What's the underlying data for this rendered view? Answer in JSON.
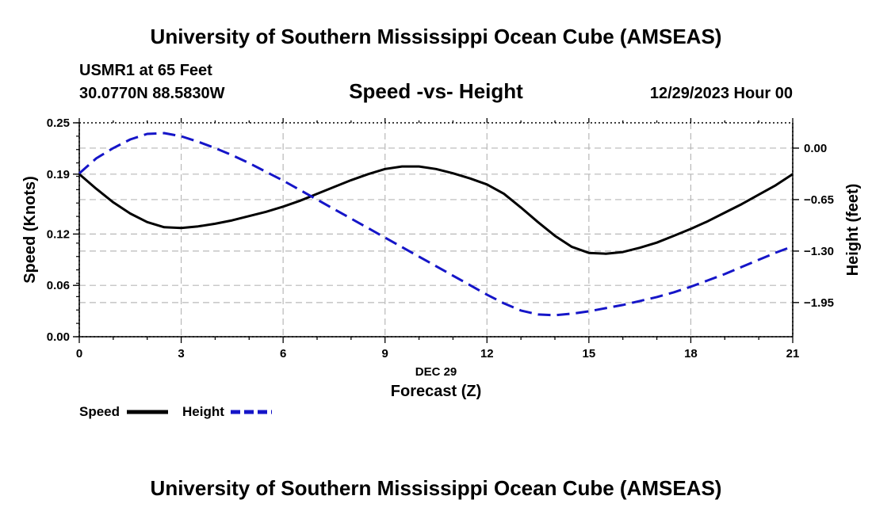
{
  "header": {
    "title": "University of Southern Mississippi Ocean Cube (AMSEAS)",
    "station": "USMR1 at 65 Feet",
    "coords": "30.0770N  88.5830W",
    "date_label": "12/29/2023 Hour 00",
    "footer_title": "University of Southern Mississippi Ocean Cube (AMSEAS)"
  },
  "chart_data": {
    "type": "line",
    "title": "Speed -vs- Height",
    "xlabel_day": "DEC 29",
    "xlabel": "Forecast (Z)",
    "ylabel": "Speed (Knots)",
    "y2label": "Height (feet)",
    "xlim": [
      0,
      21
    ],
    "ylim": [
      0.0,
      0.25
    ],
    "y2lim": [
      -2.3816,
      0.3196
    ],
    "x_ticks": [
      0,
      3,
      6,
      9,
      12,
      15,
      18,
      21
    ],
    "x_tick_labels": [
      "0",
      "3",
      "6",
      "9",
      "12",
      "15",
      "18",
      "21"
    ],
    "y_ticks": [
      0.0,
      0.06,
      0.12,
      0.19,
      0.25
    ],
    "y_tick_labels": [
      "0.00",
      "0.06",
      "0.12",
      "0.19",
      "0.25"
    ],
    "y2_ticks": [
      0.0,
      -0.65,
      -1.3,
      -1.95
    ],
    "y2_tick_labels": [
      "0.00",
      "-0.65",
      "-1.30",
      "-1.95"
    ],
    "grid": true,
    "legend_position": "bottom-left",
    "series": [
      {
        "name": "Speed",
        "axis": "left",
        "color": "#000000",
        "style": "solid",
        "x": [
          0,
          0.5,
          1,
          1.5,
          2,
          2.5,
          3,
          3.5,
          4,
          4.5,
          5,
          5.5,
          6,
          6.5,
          7,
          7.5,
          8,
          8.5,
          9,
          9.5,
          10,
          10.5,
          11,
          11.5,
          12,
          12.5,
          13,
          13.5,
          14,
          14.5,
          15,
          15.5,
          16,
          16.5,
          17,
          17.5,
          18,
          18.5,
          19,
          19.5,
          20,
          20.5,
          21
        ],
        "values": [
          0.19,
          0.173,
          0.157,
          0.144,
          0.134,
          0.128,
          0.127,
          0.129,
          0.132,
          0.136,
          0.141,
          0.146,
          0.152,
          0.159,
          0.167,
          0.175,
          0.183,
          0.19,
          0.196,
          0.199,
          0.199,
          0.196,
          0.191,
          0.185,
          0.178,
          0.167,
          0.151,
          0.134,
          0.118,
          0.105,
          0.098,
          0.097,
          0.099,
          0.104,
          0.11,
          0.118,
          0.126,
          0.135,
          0.145,
          0.155,
          0.166,
          0.177,
          0.19
        ]
      },
      {
        "name": "Height",
        "axis": "right",
        "color": "#1515c8",
        "style": "dashed",
        "x": [
          0,
          0.5,
          1,
          1.5,
          2,
          2.5,
          3,
          3.5,
          4,
          4.5,
          5,
          5.5,
          6,
          6.5,
          7,
          7.5,
          8,
          8.5,
          9,
          9.5,
          10,
          10.5,
          11,
          11.5,
          12,
          12.5,
          13,
          13.5,
          14,
          14.5,
          15,
          15.5,
          16,
          16.5,
          17,
          17.5,
          18,
          18.5,
          19,
          19.5,
          20,
          20.5,
          21
        ],
        "values": [
          -0.32,
          -0.13,
          0.0,
          0.11,
          0.18,
          0.19,
          0.15,
          0.08,
          0.0,
          -0.09,
          -0.19,
          -0.3,
          -0.41,
          -0.53,
          -0.65,
          -0.77,
          -0.89,
          -1.01,
          -1.13,
          -1.25,
          -1.37,
          -1.49,
          -1.61,
          -1.73,
          -1.85,
          -1.96,
          -2.05,
          -2.1,
          -2.11,
          -2.09,
          -2.06,
          -2.02,
          -1.98,
          -1.93,
          -1.88,
          -1.82,
          -1.75,
          -1.67,
          -1.59,
          -1.5,
          -1.41,
          -1.32,
          -1.24
        ]
      }
    ]
  },
  "legend": {
    "speed_label": "Speed",
    "height_label": "Height"
  }
}
